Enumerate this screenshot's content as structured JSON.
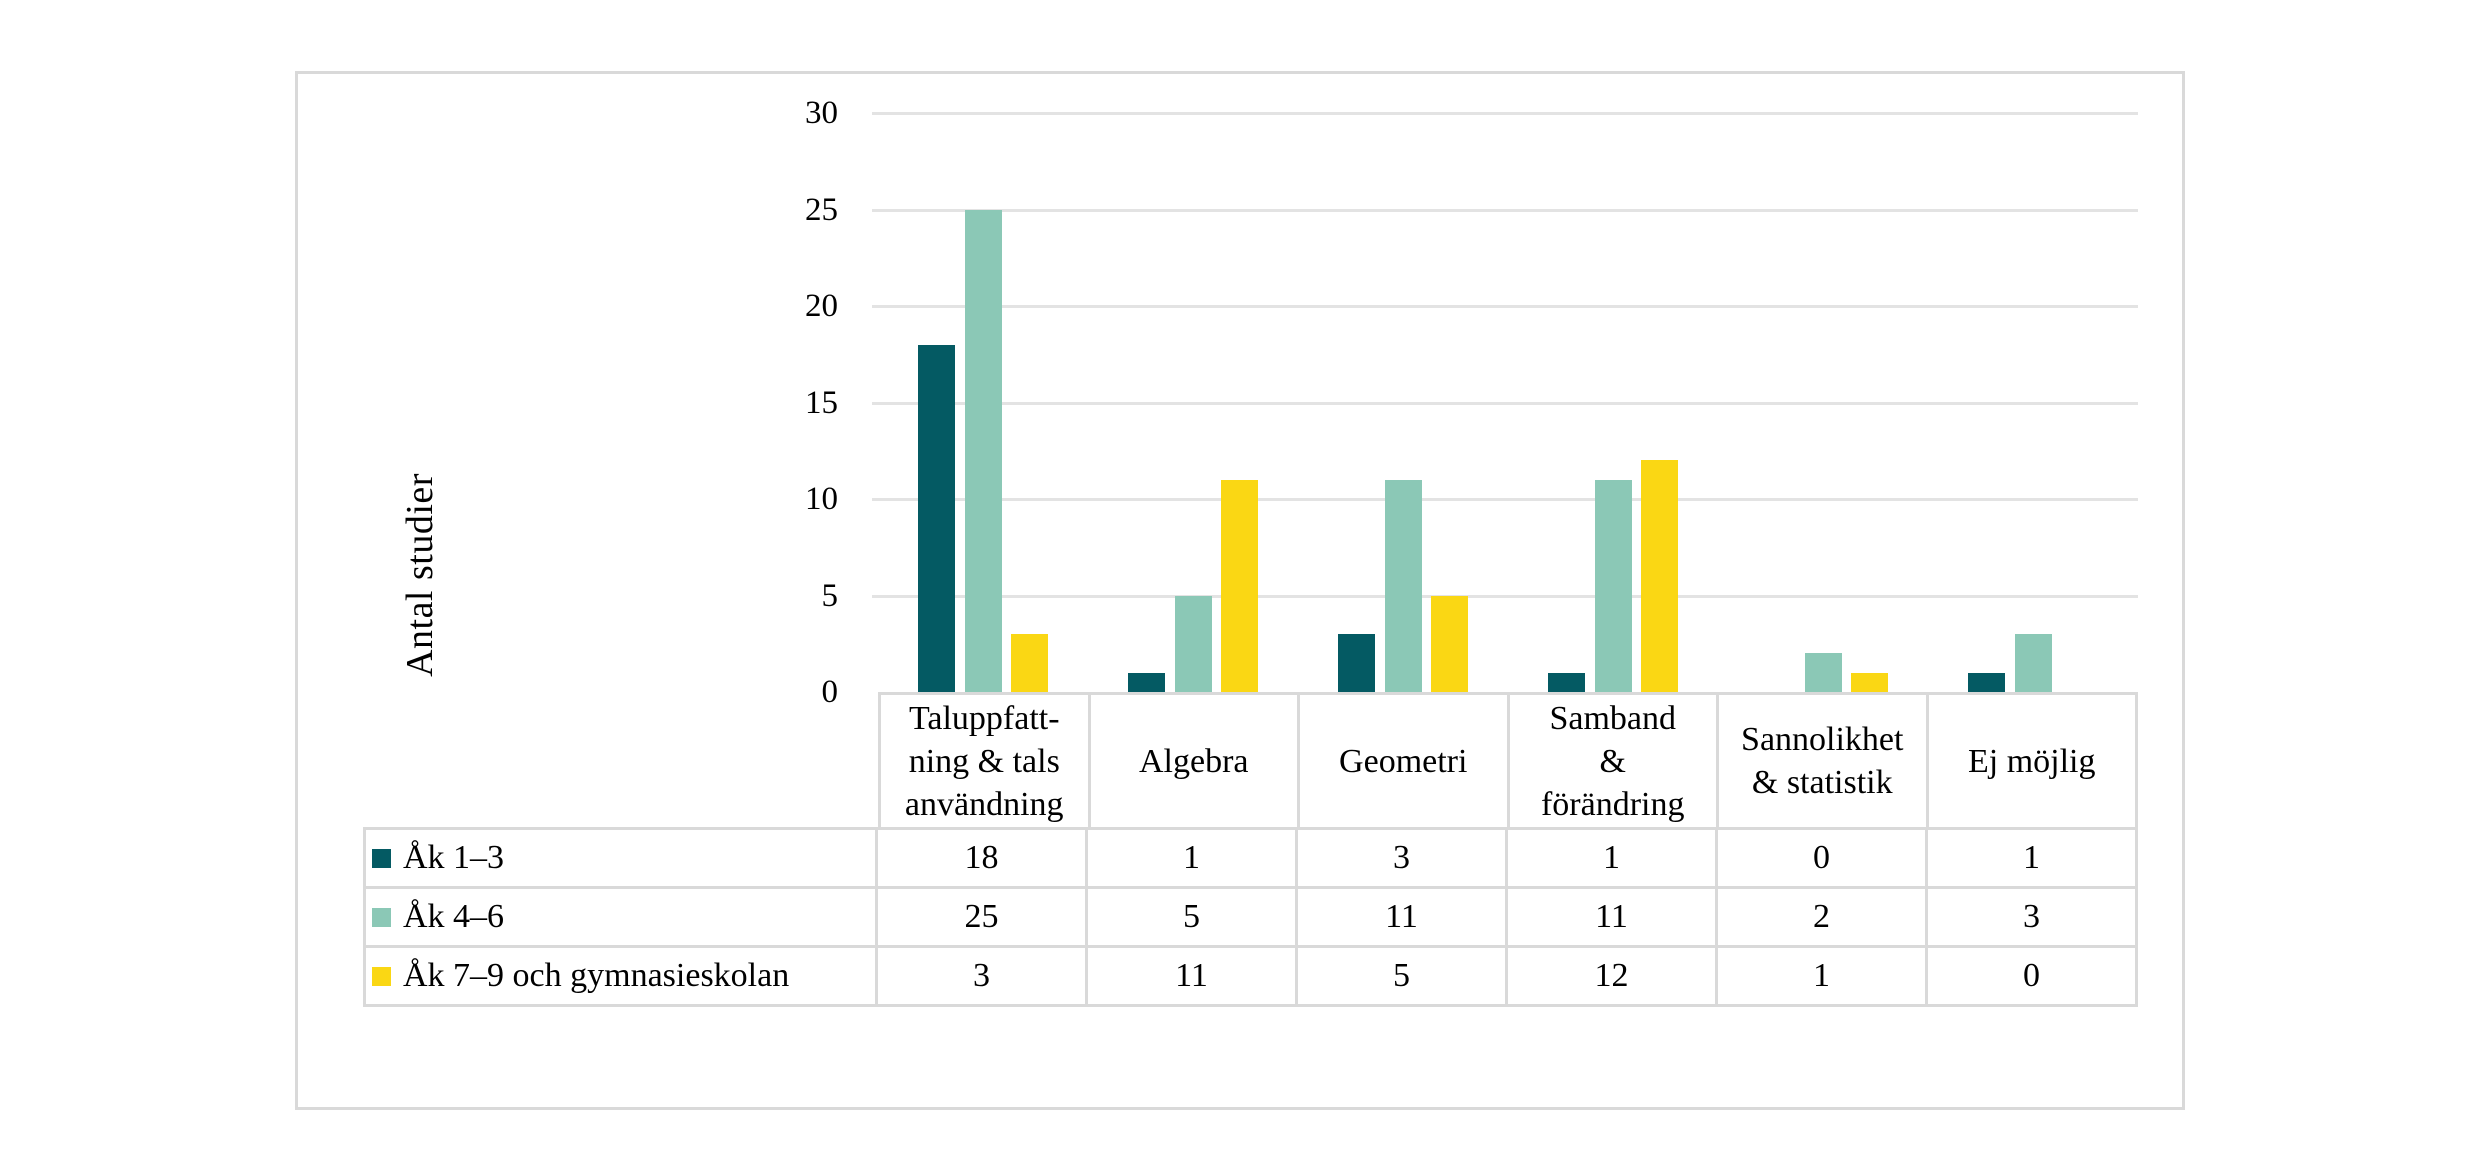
{
  "chart_data": {
    "type": "bar",
    "title": "",
    "xlabel": "",
    "ylabel": "Antal studier",
    "ylim": [
      0,
      30
    ],
    "yticks": [
      0,
      5,
      10,
      15,
      20,
      25,
      30
    ],
    "grid": true,
    "legend_position": "table-left-column",
    "categories": [
      {
        "label": "Taluppfattning & tals användning",
        "lines": [
          "Taluppfatt-",
          "ning & tals",
          "användning"
        ]
      },
      {
        "label": "Algebra",
        "lines": [
          "Algebra"
        ]
      },
      {
        "label": "Geometri",
        "lines": [
          "Geometri"
        ]
      },
      {
        "label": "Samband & förändring",
        "lines": [
          "Samband",
          "&",
          "förändring"
        ]
      },
      {
        "label": "Sannolikhet & statistik",
        "lines": [
          "Sannolikhet",
          "& statistik"
        ]
      },
      {
        "label": "Ej möjlig",
        "lines": [
          "Ej möjlig"
        ]
      }
    ],
    "series": [
      {
        "name": "Åk 1–3",
        "color": "#045A63",
        "values": [
          18,
          1,
          3,
          1,
          0,
          1
        ]
      },
      {
        "name": "Åk 4–6",
        "color": "#8BC8B6",
        "values": [
          25,
          5,
          11,
          11,
          2,
          3
        ]
      },
      {
        "name": "Åk 7–9 och gymnasieskolan",
        "color": "#FAD714",
        "values": [
          3,
          11,
          5,
          12,
          1,
          0
        ]
      }
    ]
  },
  "colors": {
    "background": "#FFFFFF",
    "frame_border": "#D9D9D9",
    "gridline": "#E3E3E3",
    "table_border": "#D9D9D9",
    "text": "#000000"
  }
}
